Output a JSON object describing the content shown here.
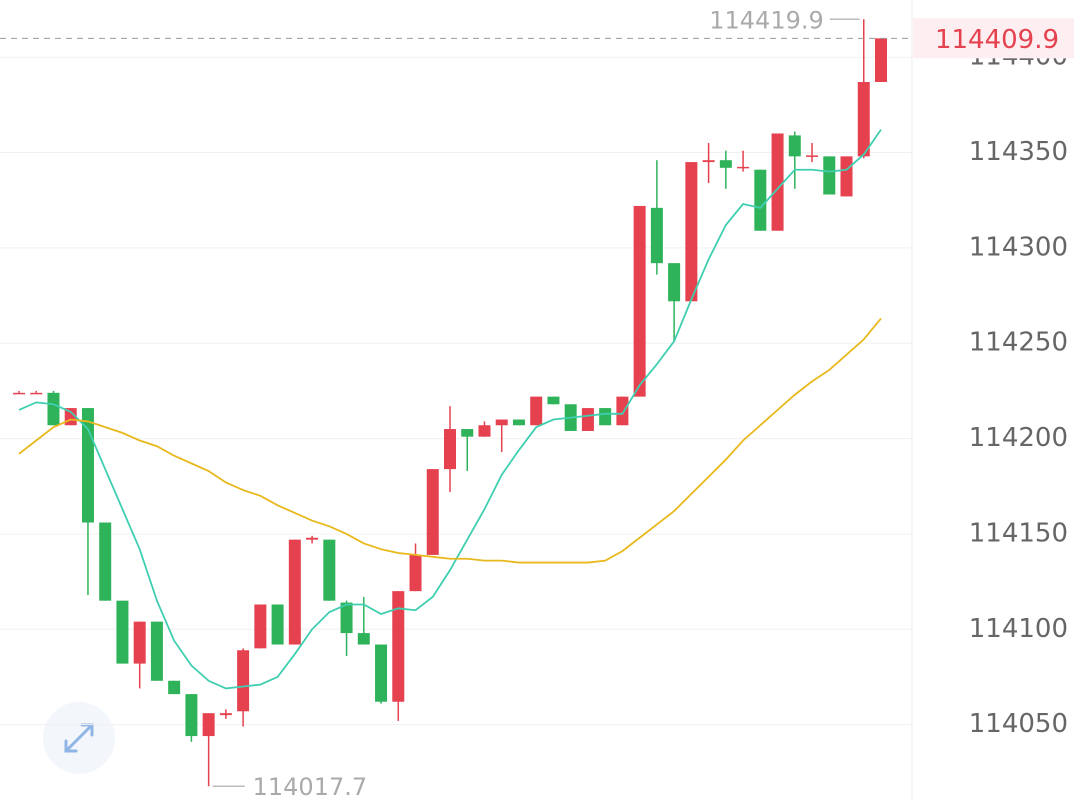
{
  "chart_data": {
    "type": "candlestick",
    "up_color": "#e5414f",
    "down_color": "#2fb35a",
    "open": [
      114224,
      114224,
      114224,
      114207,
      114216,
      114156,
      114115,
      114082,
      114104,
      114073,
      114066,
      114044,
      114055,
      114057,
      114090,
      114113,
      114092,
      114147,
      114147,
      114114,
      114098,
      114092,
      114062,
      114120,
      114139,
      114184,
      114205,
      114201,
      114207,
      114210,
      114207,
      114222,
      114218,
      114204,
      114216,
      114207,
      114222,
      114321,
      114292,
      114272,
      114345,
      114346,
      114342,
      114341,
      114309,
      114359,
      114348,
      114348,
      114327,
      114348,
      114387
    ],
    "high": [
      114225,
      114225,
      114225,
      114216,
      114216,
      114156,
      114115,
      114104,
      114104,
      114073,
      114066,
      114056,
      114058,
      114090,
      114113,
      114113,
      114147,
      114149,
      114147,
      114115,
      114117,
      114092,
      114120,
      114145,
      114184,
      114217,
      114205,
      114209,
      114210,
      114210,
      114222,
      114222,
      114218,
      114216,
      114216,
      114222,
      114322,
      114346,
      114292,
      114345,
      114355,
      114351,
      114351,
      114341,
      114360,
      114361,
      114355,
      114348,
      114348,
      114419.9,
      114410
    ],
    "low": [
      114224,
      114224,
      114207,
      114207,
      114118,
      114115,
      114082,
      114069,
      114073,
      114066,
      114041,
      114017.7,
      114053,
      114049,
      114090,
      114092,
      114092,
      114145,
      114115,
      114086,
      114092,
      114061,
      114052,
      114120,
      114139,
      114172,
      114183,
      114201,
      114193,
      114207,
      114207,
      114218,
      114204,
      114204,
      114207,
      114207,
      114222,
      114286,
      114251,
      114272,
      114334,
      114331,
      114340,
      114309,
      114309,
      114331,
      114345,
      114328,
      114327,
      114347,
      114387
    ],
    "close": [
      114224,
      114224,
      114207,
      114216,
      114156,
      114115,
      114082,
      114104,
      114073,
      114066,
      114044,
      114056,
      114056,
      114089,
      114113,
      114092,
      114147,
      114148,
      114115,
      114098,
      114092,
      114062,
      114120,
      114139,
      114184,
      114205,
      114201,
      114207,
      114210,
      114207,
      114222,
      114218,
      114204,
      114216,
      114207,
      114222,
      114322,
      114292,
      114272,
      114345,
      114346,
      114342,
      114342.5,
      114309,
      114360,
      114348,
      114348.5,
      114328,
      114348,
      114387,
      114409.9
    ],
    "ma_lines": [
      {
        "color": "#3fcfb0",
        "values": [
          114215,
          114219,
          114218,
          114214,
          114205,
          114184,
          114163,
          114142,
          114115,
          114094,
          114081,
          114073,
          114069,
          114070,
          114071,
          114075,
          114087,
          114100,
          114109,
          114113,
          114113,
          114108,
          114111,
          114110,
          114117,
          114131,
          114147,
          114163,
          114181,
          114194,
          114206,
          114210,
          114211,
          114212,
          114213,
          114213,
          114228,
          114239,
          114251,
          114273,
          114294,
          114312,
          114323,
          114321,
          114331,
          114341,
          114341,
          114340,
          114341,
          114349,
          114362
        ]
      },
      {
        "color": "#e8b81c",
        "values": [
          114192,
          114199,
          114206,
          114210,
          114209,
          114206,
          114203,
          114199,
          114196,
          114191,
          114187,
          114183,
          114177,
          114173,
          114170,
          114165,
          114161,
          114157,
          114154,
          114150,
          114145,
          114142,
          114140,
          114139,
          114138,
          114137,
          114137,
          114136,
          114136,
          114135,
          114135,
          114135,
          114135,
          114135,
          114136,
          114141,
          114148,
          114155,
          114162,
          114171,
          114180,
          114189,
          114199,
          114207,
          114215,
          114223,
          114230,
          114236,
          114244,
          114252,
          114263
        ]
      }
    ],
    "ylim": [
      114011,
      114430
    ],
    "yticks": [
      114050,
      114100,
      114150,
      114200,
      114250,
      114300,
      114350,
      114400
    ],
    "grid": true
  }
}
